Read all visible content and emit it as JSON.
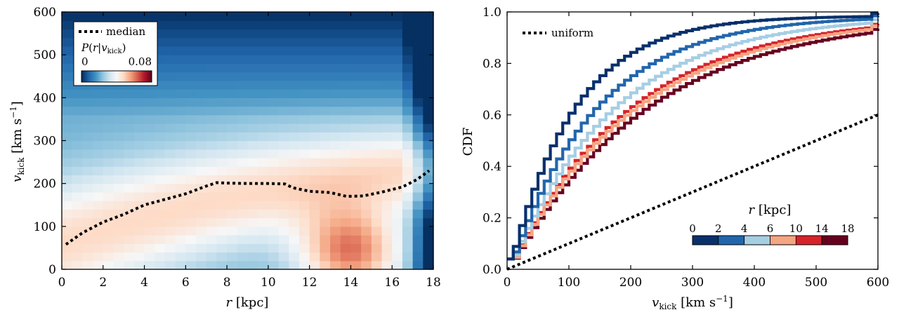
{
  "chart_data": [
    {
      "type": "heatmap",
      "xlabel": "r [kpc]",
      "ylabel": "v_kick [km s^-1]",
      "xlim": [
        0,
        18
      ],
      "ylim": [
        0,
        600
      ],
      "xticks": [
        0,
        2,
        4,
        6,
        8,
        10,
        12,
        14,
        16,
        18
      ],
      "yticks": [
        0,
        100,
        200,
        300,
        400,
        500,
        600
      ],
      "colorbar": {
        "label": "P(r|v_kick)",
        "min_label": "0",
        "max_label": "0.08",
        "range": [
          0,
          0.08
        ],
        "cmap": "RdBu_r"
      },
      "median": {
        "label": "median",
        "r": [
          0.2,
          1,
          2,
          3,
          4,
          5,
          6,
          7,
          7.5,
          8,
          9,
          10,
          10.8,
          11.2,
          12,
          13,
          13.8,
          14.6,
          15.5,
          16.5,
          17.2,
          17.8
        ],
        "v": [
          58,
          85,
          110,
          128,
          150,
          163,
          176,
          194,
          202,
          201,
          200,
          200,
          199,
          190,
          182,
          179,
          170,
          171,
          180,
          192,
          209,
          230
        ]
      }
    },
    {
      "type": "line",
      "step": true,
      "xlabel": "v_kick [km s^-1]",
      "ylabel": "CDF",
      "xlim": [
        0,
        600
      ],
      "ylim": [
        0,
        1
      ],
      "xticks": [
        0,
        100,
        200,
        300,
        400,
        500,
        600
      ],
      "yticks": [
        "0.0",
        "0.2",
        "0.4",
        "0.6",
        "0.8",
        "1.0"
      ],
      "legend": {
        "label": "uniform",
        "position": "top-left"
      },
      "colorbar": {
        "label": "r [kpc]",
        "ticks": [
          "0",
          "2",
          "4",
          "6",
          "10",
          "14",
          "18"
        ],
        "position": "lower-right"
      },
      "series": [
        {
          "name": "0-2 kpc",
          "color": "#08306b",
          "scale": 90
        },
        {
          "name": "2-4 kpc",
          "color": "#2166ac",
          "scale": 120
        },
        {
          "name": "4-6 kpc",
          "color": "#a6cee3",
          "scale": 145
        },
        {
          "name": "6-10 kpc",
          "color": "#f4a582",
          "scale": 175
        },
        {
          "name": "10-14 kpc",
          "color": "#d6232a",
          "scale": 168
        },
        {
          "name": "14-18 kpc",
          "color": "#67001f",
          "scale": 190
        }
      ],
      "uniform": {
        "x": [
          0,
          600
        ],
        "y": [
          0,
          0.6
        ]
      }
    }
  ]
}
